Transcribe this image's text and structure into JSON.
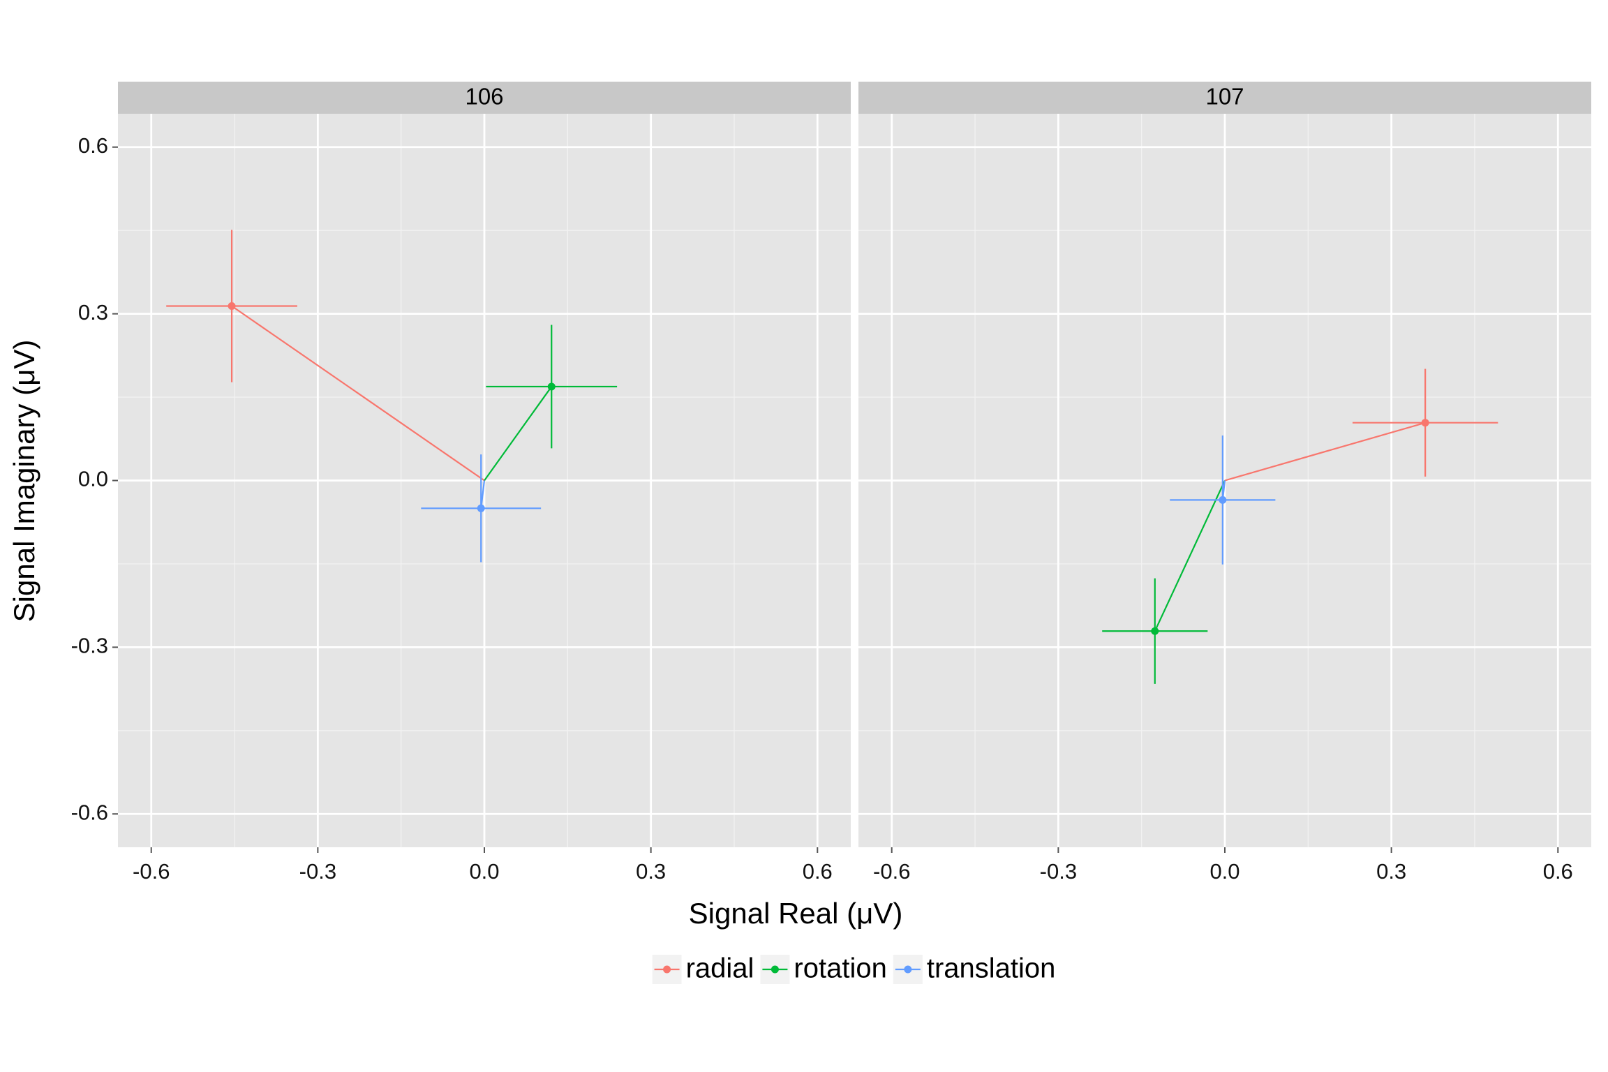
{
  "chart_data": {
    "type": "scatter",
    "x_label": "Signal Real (μV)",
    "y_label": "Signal Imaginary (μV)",
    "xlim": [
      -0.66,
      0.66
    ],
    "ylim": [
      -0.66,
      0.66
    ],
    "xticks": [
      -0.6,
      -0.3,
      {
        "value": 0,
        "label": "0.0"
      },
      0.3,
      0.6
    ],
    "yticks": [
      -0.6,
      -0.3,
      {
        "value": 0,
        "label": "0.0"
      },
      0.3,
      0.6
    ],
    "xminor": [
      -0.45,
      -0.15,
      0.15,
      0.45
    ],
    "yminor": [
      -0.45,
      -0.15,
      0.15,
      0.45
    ],
    "grid": true,
    "legend_position": "bottom",
    "series": [
      {
        "name": "radial",
        "color": "#F8766D"
      },
      {
        "name": "rotation",
        "color": "#00BA38"
      },
      {
        "name": "translation",
        "color": "#619CFF"
      }
    ],
    "panels": [
      {
        "title": "106",
        "x": [
          -0.455,
          0.121,
          -0.006
        ],
        "values": [
          0.314,
          0.169,
          -0.05
        ],
        "x_error": [
          0.118,
          0.118,
          0.108
        ],
        "y_error": [
          0.137,
          0.111,
          0.097
        ]
      },
      {
        "title": "107",
        "x": [
          0.361,
          -0.126,
          -0.004
        ],
        "values": [
          0.104,
          -0.271,
          -0.035
        ],
        "x_error": [
          0.131,
          0.095,
          0.095
        ],
        "y_error": [
          0.097,
          0.095,
          0.116
        ]
      }
    ]
  }
}
